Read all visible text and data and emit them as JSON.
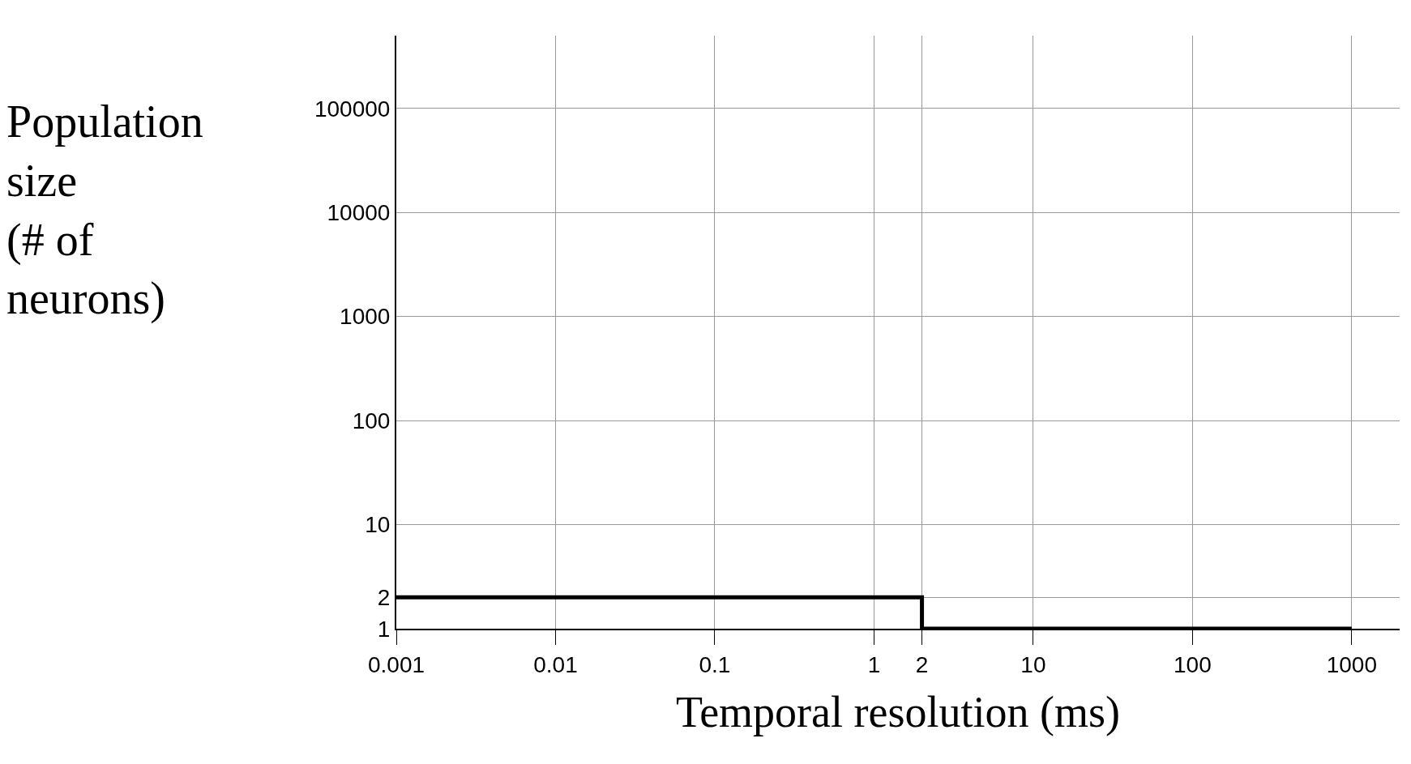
{
  "chart_data": {
    "type": "step",
    "xlabel": "Temporal resolution (ms)",
    "ylabel": "Population\nsize\n(# of\nneurons)",
    "x": [
      0.001,
      2,
      1000
    ],
    "values": [
      2,
      1,
      1
    ],
    "color": "#000000",
    "log": "xy",
    "xlim": [
      0.001,
      2000
    ],
    "ylim": [
      1,
      500000
    ],
    "xticks": [
      {
        "value": 0.001,
        "label": "0.001"
      },
      {
        "value": 0.01,
        "label": "0.01"
      },
      {
        "value": 0.1,
        "label": "0.1"
      },
      1,
      2,
      10,
      100,
      1000
    ],
    "yticks": [
      1,
      2,
      10,
      100,
      1000,
      10000,
      100000
    ],
    "grid": true,
    "marker": "none",
    "line_style": "solid"
  }
}
